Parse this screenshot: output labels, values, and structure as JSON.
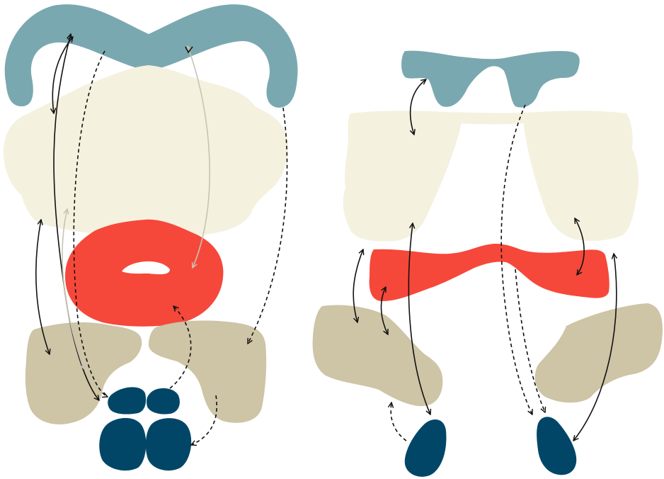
{
  "colors": {
    "background": "#ffffff",
    "steel_blue": "#7aa8b0",
    "cream": "#f5f1df",
    "red": "#f5483a",
    "tan": "#cec4a6",
    "navy": "#024667",
    "arrow_solid": "#111111",
    "arrow_faint": "#c8c3b2"
  },
  "panels": [
    {
      "id": "left",
      "view": "front",
      "layers": [
        "steel-blue-arch",
        "cream-mass",
        "red-ring",
        "tan-pair",
        "navy-quad"
      ],
      "arrow_styles": [
        "solid",
        "dashed",
        "faint"
      ]
    },
    {
      "id": "right",
      "view": "side",
      "layers": [
        "steel-blue-bar",
        "cream-pair",
        "red-band",
        "tan-pair",
        "navy-pair"
      ],
      "arrow_styles": [
        "solid",
        "dashed"
      ]
    }
  ]
}
